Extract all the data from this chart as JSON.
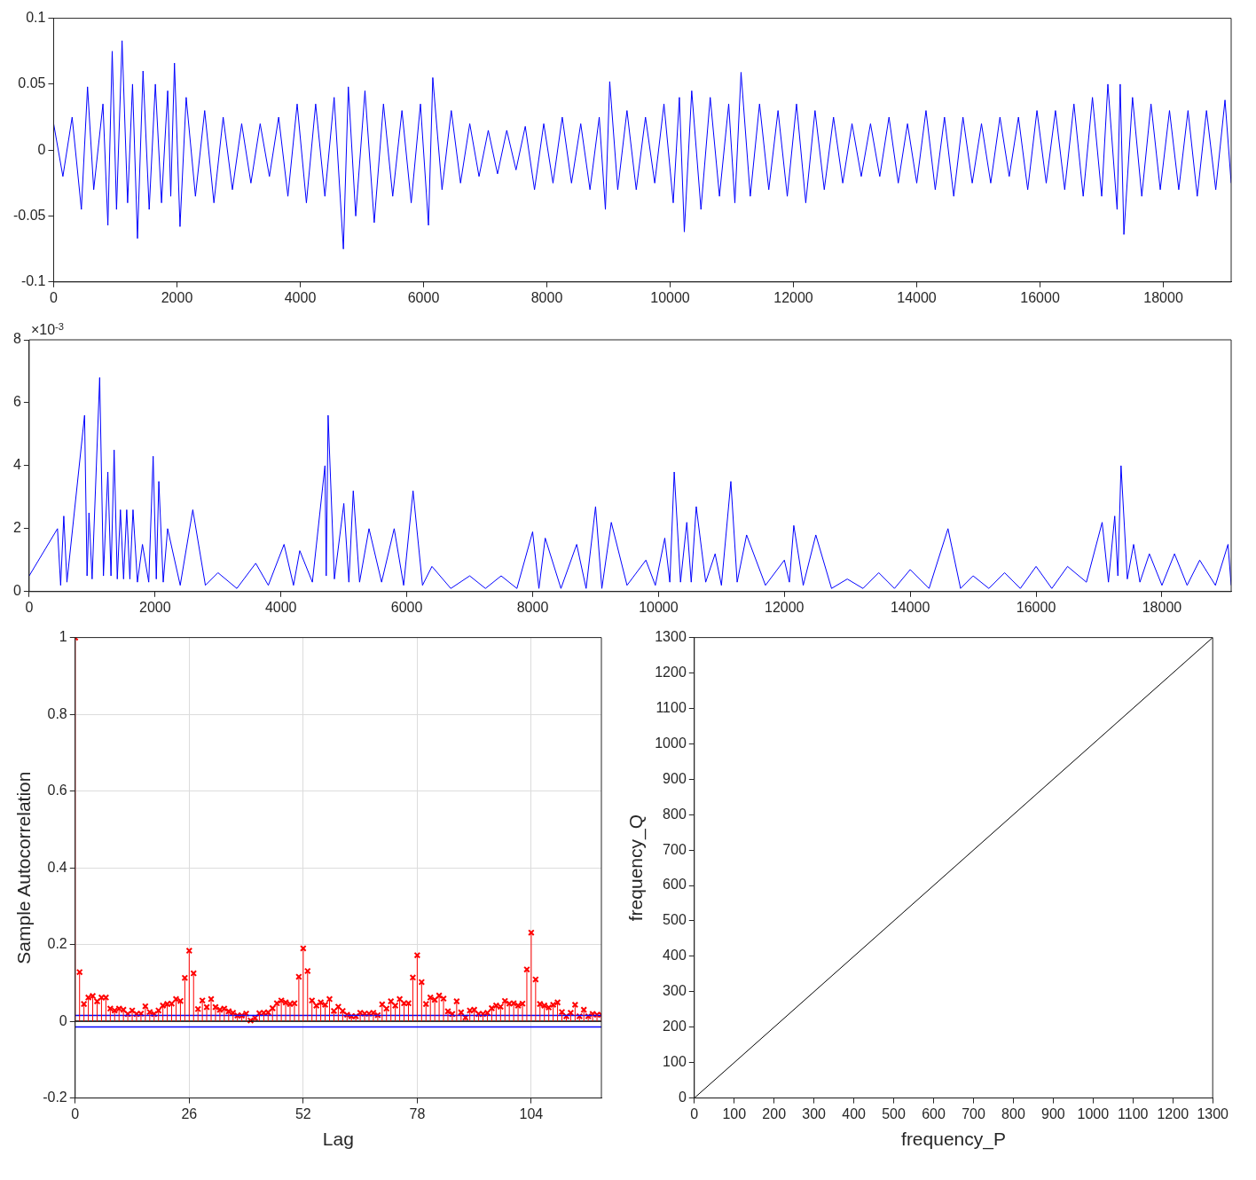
{
  "chart_data": [
    {
      "type": "line",
      "color": "#0000ff",
      "x": [
        0,
        150,
        300,
        450,
        550,
        650,
        800,
        880,
        950,
        1020,
        1110,
        1200,
        1280,
        1360,
        1450,
        1550,
        1650,
        1750,
        1850,
        1900,
        1960,
        2050,
        2150,
        2300,
        2450,
        2600,
        2750,
        2900,
        3050,
        3200,
        3350,
        3500,
        3650,
        3800,
        3950,
        4100,
        4250,
        4400,
        4550,
        4700,
        4780,
        4900,
        5050,
        5200,
        5350,
        5500,
        5650,
        5800,
        5950,
        6080,
        6150,
        6300,
        6450,
        6600,
        6750,
        6900,
        7050,
        7200,
        7350,
        7500,
        7650,
        7800,
        7950,
        8100,
        8250,
        8400,
        8550,
        8700,
        8850,
        8950,
        9020,
        9150,
        9300,
        9450,
        9600,
        9750,
        9900,
        10050,
        10150,
        10230,
        10350,
        10500,
        10650,
        10800,
        10950,
        11050,
        11150,
        11300,
        11450,
        11600,
        11750,
        11900,
        12050,
        12200,
        12350,
        12500,
        12650,
        12800,
        12950,
        13100,
        13250,
        13400,
        13550,
        13700,
        13850,
        14000,
        14150,
        14300,
        14450,
        14600,
        14750,
        14900,
        15050,
        15200,
        15350,
        15500,
        15650,
        15800,
        15950,
        16100,
        16250,
        16400,
        16550,
        16700,
        16850,
        17000,
        17100,
        17250,
        17300,
        17360,
        17500,
        17650,
        17800,
        17950,
        18100,
        18250,
        18400,
        18550,
        18700,
        18850,
        19000,
        19100
      ],
      "values": [
        0.02,
        -0.02,
        0.025,
        -0.045,
        0.048,
        -0.03,
        0.035,
        -0.057,
        0.075,
        -0.045,
        0.083,
        -0.04,
        0.05,
        -0.067,
        0.06,
        -0.045,
        0.05,
        -0.04,
        0.045,
        -0.035,
        0.066,
        -0.058,
        0.04,
        -0.035,
        0.03,
        -0.04,
        0.025,
        -0.03,
        0.02,
        -0.025,
        0.02,
        -0.02,
        0.025,
        -0.035,
        0.035,
        -0.04,
        0.035,
        -0.035,
        0.04,
        -0.075,
        0.048,
        -0.05,
        0.045,
        -0.055,
        0.035,
        -0.035,
        0.03,
        -0.04,
        0.035,
        -0.057,
        0.055,
        -0.03,
        0.03,
        -0.025,
        0.02,
        -0.02,
        0.015,
        -0.018,
        0.015,
        -0.015,
        0.018,
        -0.03,
        0.02,
        -0.025,
        0.025,
        -0.025,
        0.02,
        -0.03,
        0.025,
        -0.045,
        0.052,
        -0.03,
        0.03,
        -0.03,
        0.025,
        -0.025,
        0.035,
        -0.04,
        0.04,
        -0.062,
        0.045,
        -0.045,
        0.04,
        -0.035,
        0.035,
        -0.04,
        0.059,
        -0.035,
        0.035,
        -0.03,
        0.03,
        -0.035,
        0.035,
        -0.04,
        0.03,
        -0.03,
        0.025,
        -0.025,
        0.02,
        -0.02,
        0.02,
        -0.02,
        0.025,
        -0.025,
        0.02,
        -0.025,
        0.03,
        -0.03,
        0.025,
        -0.035,
        0.025,
        -0.025,
        0.02,
        -0.025,
        0.025,
        -0.02,
        0.025,
        -0.03,
        0.03,
        -0.025,
        0.03,
        -0.03,
        0.035,
        -0.035,
        0.04,
        -0.035,
        0.05,
        -0.045,
        0.05,
        -0.064,
        0.04,
        -0.035,
        0.035,
        -0.03,
        0.03,
        -0.03,
        0.03,
        -0.035,
        0.03,
        -0.03,
        0.038,
        -0.025
      ],
      "xlim": [
        0,
        19100
      ],
      "ylim": [
        -0.1,
        0.1
      ],
      "xticks": [
        0,
        2000,
        4000,
        6000,
        8000,
        10000,
        12000,
        14000,
        16000,
        18000
      ],
      "yticks": [
        -0.1,
        -0.05,
        0,
        0.05,
        0.1
      ]
    },
    {
      "type": "line",
      "color": "#0000ff",
      "x": [
        0,
        450,
        500,
        550,
        600,
        880,
        920,
        950,
        1000,
        1120,
        1180,
        1250,
        1300,
        1350,
        1400,
        1450,
        1500,
        1550,
        1600,
        1650,
        1720,
        1800,
        1900,
        1970,
        2020,
        2060,
        2130,
        2200,
        2400,
        2600,
        2800,
        3000,
        3300,
        3600,
        3800,
        4050,
        4200,
        4300,
        4500,
        4700,
        4720,
        4750,
        4850,
        5000,
        5080,
        5150,
        5250,
        5400,
        5600,
        5800,
        5950,
        6100,
        6250,
        6400,
        6700,
        7000,
        7250,
        7500,
        7750,
        8000,
        8100,
        8200,
        8450,
        8700,
        8850,
        9000,
        9100,
        9250,
        9500,
        9800,
        9950,
        10100,
        10180,
        10250,
        10350,
        10450,
        10520,
        10600,
        10750,
        10900,
        11000,
        11150,
        11250,
        11400,
        11700,
        12000,
        12080,
        12150,
        12300,
        12500,
        12750,
        13000,
        13250,
        13500,
        13750,
        14000,
        14300,
        14600,
        14800,
        15000,
        15250,
        15500,
        15750,
        16000,
        16250,
        16500,
        16800,
        17050,
        17150,
        17250,
        17300,
        17350,
        17450,
        17550,
        17650,
        17800,
        18000,
        18200,
        18400,
        18600,
        18850,
        19050,
        19100
      ],
      "values": [
        0.5,
        2.0,
        0.2,
        2.4,
        0.3,
        5.6,
        0.5,
        2.5,
        0.4,
        6.8,
        0.5,
        3.8,
        0.5,
        4.5,
        0.4,
        2.6,
        0.4,
        2.6,
        0.4,
        2.6,
        0.3,
        1.5,
        0.3,
        4.3,
        0.4,
        3.5,
        0.3,
        2.0,
        0.2,
        2.6,
        0.2,
        0.6,
        0.1,
        0.9,
        0.2,
        1.5,
        0.2,
        1.3,
        0.3,
        4.0,
        0.5,
        5.6,
        0.4,
        2.8,
        0.3,
        3.2,
        0.3,
        2.0,
        0.3,
        2.0,
        0.2,
        3.2,
        0.2,
        0.8,
        0.1,
        0.5,
        0.1,
        0.5,
        0.1,
        1.9,
        0.1,
        1.7,
        0.1,
        1.5,
        0.1,
        2.7,
        0.1,
        2.2,
        0.2,
        1.0,
        0.2,
        1.7,
        0.3,
        3.8,
        0.3,
        2.2,
        0.3,
        2.7,
        0.3,
        1.2,
        0.2,
        3.5,
        0.3,
        1.8,
        0.2,
        1.0,
        0.3,
        2.1,
        0.2,
        1.8,
        0.1,
        0.4,
        0.1,
        0.6,
        0.1,
        0.7,
        0.1,
        2.0,
        0.1,
        0.5,
        0.1,
        0.6,
        0.1,
        0.8,
        0.1,
        0.8,
        0.3,
        2.2,
        0.3,
        2.4,
        0.5,
        4.0,
        0.4,
        1.5,
        0.3,
        1.2,
        0.2,
        1.2,
        0.2,
        1.0,
        0.2,
        1.5,
        0.2
      ],
      "xlim": [
        0,
        19100
      ],
      "ylim": [
        0,
        8
      ],
      "xticks": [
        0,
        2000,
        4000,
        6000,
        8000,
        10000,
        12000,
        14000,
        16000,
        18000
      ],
      "yticks": [
        0,
        2,
        4,
        6,
        8
      ],
      "annotations": [
        "×10$^{-3}$"
      ]
    },
    {
      "type": "lollipop",
      "color": "#ff0000",
      "marker": "cross",
      "grid": true,
      "xlabel": "Lag",
      "ylabel": "Sample Autocorrelation",
      "x": [
        0,
        1,
        2,
        3,
        4,
        5,
        6,
        7,
        8,
        9,
        10,
        11,
        12,
        13,
        14,
        15,
        16,
        17,
        18,
        19,
        20,
        21,
        22,
        23,
        24,
        25,
        26,
        27,
        28,
        29,
        30,
        31,
        32,
        33,
        34,
        35,
        36,
        37,
        38,
        39,
        40,
        41,
        42,
        43,
        44,
        45,
        46,
        47,
        48,
        49,
        50,
        51,
        52,
        53,
        54,
        55,
        56,
        57,
        58,
        59,
        60,
        61,
        62,
        63,
        64,
        65,
        66,
        67,
        68,
        69,
        70,
        71,
        72,
        73,
        74,
        75,
        76,
        77,
        78,
        79,
        80,
        81,
        82,
        83,
        84,
        85,
        86,
        87,
        88,
        89,
        90,
        91,
        92,
        93,
        94,
        95,
        96,
        97,
        98,
        99,
        100,
        101,
        102,
        103,
        104,
        105,
        106,
        107,
        108,
        109,
        110,
        111,
        112,
        113,
        114,
        115,
        116,
        117,
        118,
        119,
        120
      ],
      "values": [
        1,
        0.128,
        0.045,
        0.062,
        0.066,
        0.052,
        0.062,
        0.062,
        0.033,
        0.028,
        0.033,
        0.03,
        0.019,
        0.028,
        0.019,
        0.02,
        0.039,
        0.024,
        0.019,
        0.028,
        0.041,
        0.045,
        0.046,
        0.058,
        0.053,
        0.113,
        0.184,
        0.125,
        0.032,
        0.054,
        0.037,
        0.058,
        0.037,
        0.03,
        0.033,
        0.026,
        0.022,
        0.015,
        0.015,
        0.02,
        0.002,
        0.009,
        0.021,
        0.022,
        0.023,
        0.034,
        0.047,
        0.054,
        0.049,
        0.045,
        0.047,
        0.116,
        0.19,
        0.131,
        0.054,
        0.041,
        0.049,
        0.043,
        0.058,
        0.027,
        0.038,
        0.027,
        0.017,
        0.013,
        0.013,
        0.022,
        0.02,
        0.02,
        0.022,
        0.016,
        0.044,
        0.033,
        0.052,
        0.041,
        0.058,
        0.047,
        0.047,
        0.114,
        0.172,
        0.102,
        0.045,
        0.062,
        0.056,
        0.067,
        0.059,
        0.026,
        0.019,
        0.052,
        0.023,
        0.01,
        0.028,
        0.03,
        0.019,
        0.019,
        0.022,
        0.034,
        0.041,
        0.038,
        0.053,
        0.046,
        0.047,
        0.041,
        0.046,
        0.135,
        0.231,
        0.109,
        0.045,
        0.041,
        0.036,
        0.043,
        0.049,
        0.024,
        0.013,
        0.022,
        0.043,
        0.013,
        0.03,
        0.013,
        0.019,
        0.017,
        0.017
      ],
      "xlim": [
        0,
        120
      ],
      "ylim": [
        -0.2,
        1
      ],
      "xticks": [
        0,
        26,
        52,
        78,
        104
      ],
      "yticks": [
        -0.2,
        0,
        0.2,
        0.4,
        0.6,
        0.8,
        1
      ],
      "ref_lines": [
        {
          "axis": "y",
          "value": 0.015,
          "color": "#0000ff"
        },
        {
          "axis": "y",
          "value": -0.015,
          "color": "#0000ff"
        },
        {
          "axis": "y",
          "value": 0,
          "color": "#000000"
        }
      ]
    },
    {
      "type": "line",
      "color": "#000000",
      "xlabel": "frequency_P",
      "ylabel": "frequency_Q",
      "x": [
        0,
        1300
      ],
      "values": [
        0,
        1300
      ],
      "xlim": [
        0,
        1300
      ],
      "ylim": [
        0,
        1300
      ],
      "xticks": [
        0,
        100,
        200,
        300,
        400,
        500,
        600,
        700,
        800,
        900,
        1000,
        1100,
        1200,
        1300
      ],
      "yticks": [
        0,
        100,
        200,
        300,
        400,
        500,
        600,
        700,
        800,
        900,
        1000,
        1100,
        1200,
        1300
      ]
    }
  ]
}
